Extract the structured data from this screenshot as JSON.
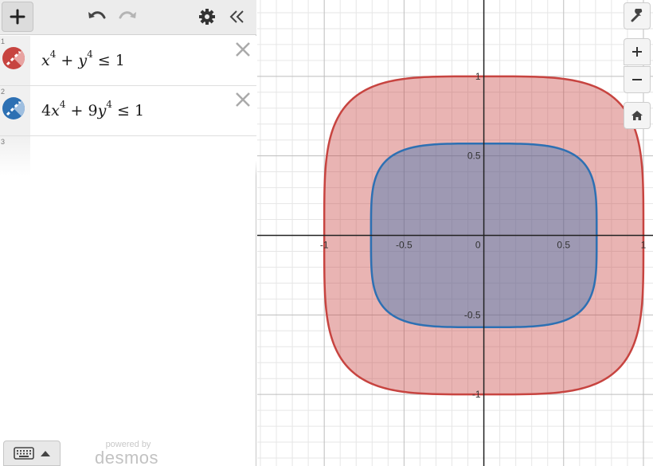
{
  "app": {
    "powered_by": "powered by",
    "brand": "desmos"
  },
  "toolbar": {
    "add_icon": "plus-icon",
    "undo_icon": "undo-icon",
    "redo_icon": "redo-icon",
    "settings_icon": "gear-icon",
    "collapse_icon": "double-chevron-left-icon"
  },
  "expressions": [
    {
      "index": "1",
      "color": "#c74440",
      "latex": "x^4 + y^4 ≤ 1",
      "parts": {
        "a": "x",
        "a_exp": "4",
        "op": "+",
        "b": "y",
        "b_exp": "4",
        "rel": "≤",
        "rhs": "1"
      }
    },
    {
      "index": "2",
      "color": "#2d70b3",
      "latex": "4x^4 + 9y^4 ≤ 1",
      "parts": {
        "ca": "4",
        "a": "x",
        "a_exp": "4",
        "op": "+",
        "cb": "9",
        "b": "y",
        "b_exp": "4",
        "rel": "≤",
        "rhs": "1"
      }
    },
    {
      "index": "3"
    }
  ],
  "graph": {
    "x_range": [
      -1.42,
      1.06
    ],
    "y_range": [
      -1.45,
      1.48
    ],
    "major_step": 0.5,
    "minor_step": 0.1,
    "x_tick_labels": [
      "-1",
      "-0.5",
      "0",
      "0.5",
      "1"
    ],
    "y_tick_labels": [
      "1",
      "0.5",
      "-0.5",
      "-1"
    ],
    "fill_opacity": 0.4
  },
  "controls": {
    "wrench_icon": "wrench-icon",
    "zoom_in_icon": "plus-icon",
    "zoom_out_icon": "minus-icon",
    "home_icon": "home-icon",
    "keyboard_icon": "keyboard-icon"
  }
}
